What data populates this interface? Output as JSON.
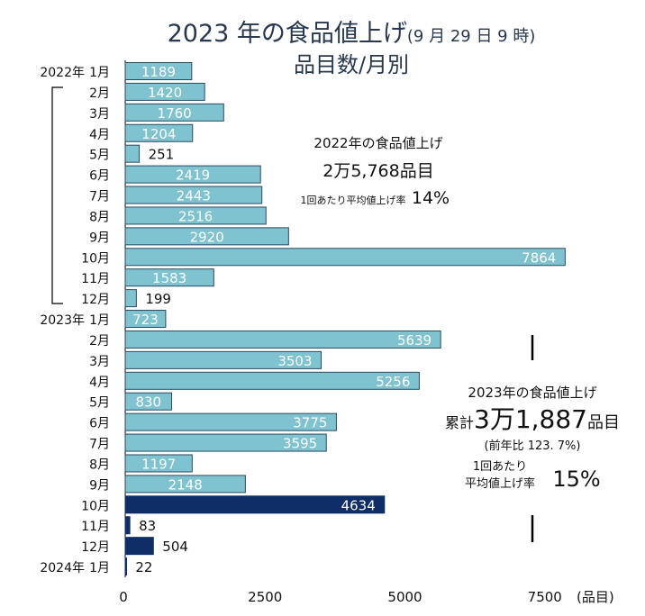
{
  "chart_data": {
    "type": "bar",
    "orientation": "horizontal",
    "title": "2023 年の食品値上げ",
    "title_suffix": "(9 月 29 日 9 時)",
    "subtitle": "品目数/月別",
    "xlabel": "(品目)",
    "xlim": [
      0,
      7864
    ],
    "xticks": [
      "0",
      "2500",
      "5000",
      "7500"
    ],
    "grid": false,
    "categories": [
      {
        "year": "2022年",
        "month": "1月"
      },
      {
        "year": "",
        "month": "2月"
      },
      {
        "year": "",
        "month": "3月"
      },
      {
        "year": "",
        "month": "4月"
      },
      {
        "year": "",
        "month": "5月"
      },
      {
        "year": "",
        "month": "6月"
      },
      {
        "year": "",
        "month": "7月"
      },
      {
        "year": "",
        "month": "8月"
      },
      {
        "year": "",
        "month": "9月"
      },
      {
        "year": "",
        "month": "10月"
      },
      {
        "year": "",
        "month": "11月"
      },
      {
        "year": "",
        "month": "12月"
      },
      {
        "year": "2023年",
        "month": "1月"
      },
      {
        "year": "",
        "month": "2月"
      },
      {
        "year": "",
        "month": "3月"
      },
      {
        "year": "",
        "month": "4月"
      },
      {
        "year": "",
        "month": "5月"
      },
      {
        "year": "",
        "month": "6月"
      },
      {
        "year": "",
        "month": "7月"
      },
      {
        "year": "",
        "month": "8月"
      },
      {
        "year": "",
        "month": "9月"
      },
      {
        "year": "",
        "month": "10月"
      },
      {
        "year": "",
        "month": "11月"
      },
      {
        "year": "",
        "month": "12月"
      },
      {
        "year": "2024年",
        "month": "1月"
      }
    ],
    "values": [
      1189,
      1420,
      1760,
      1204,
      251,
      2419,
      2443,
      2516,
      2920,
      7864,
      1583,
      199,
      723,
      5639,
      3503,
      5256,
      830,
      3775,
      3595,
      1197,
      2148,
      4634,
      83,
      504,
      22
    ],
    "highlight_from_index": 21,
    "colors": {
      "normal": "#7fc3d1",
      "normal_border": "#2b4a5e",
      "highlight": "#0f2d66",
      "title": "#27384f"
    }
  },
  "annotations": {
    "y2022": {
      "title": "2022年の食品値上げ",
      "total": "2万5,768品目",
      "rate_label": "1回あたり平均値上げ率",
      "rate": "14%"
    },
    "y2023": {
      "title": "2023年の食品値上げ",
      "total_prefix": "累計",
      "total": "3万1,887",
      "total_unit": "品目",
      "yoy": "(前年比 123. 7%)",
      "rate_label_1": "1回あたり",
      "rate_label_2": "平均値上げ率",
      "rate": "15%"
    }
  }
}
